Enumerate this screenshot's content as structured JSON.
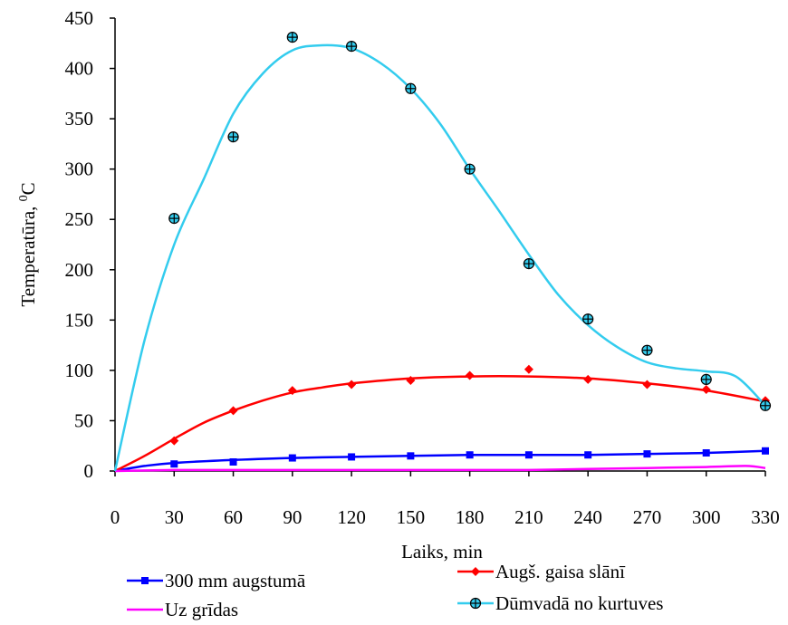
{
  "chart_data": {
    "type": "line",
    "title": "",
    "xlabel": "Laiks, min",
    "ylabel": "Temperatūra, ",
    "ylabel_sup": "0",
    "ylabel_unit": "C",
    "xlim": [
      0,
      330
    ],
    "ylim": [
      0,
      450
    ],
    "x_ticks": [
      0,
      30,
      60,
      90,
      120,
      150,
      180,
      210,
      240,
      270,
      300,
      330
    ],
    "y_ticks": [
      0,
      50,
      100,
      150,
      200,
      250,
      300,
      350,
      400,
      450
    ],
    "grid": false,
    "legend_position": "bottom",
    "series": [
      {
        "name": "300 mm augstumā",
        "color": "#0000ff",
        "marker": "square",
        "x": [
          0,
          30,
          60,
          90,
          120,
          150,
          180,
          210,
          240,
          270,
          300,
          330
        ],
        "values": [
          0,
          7,
          9,
          13,
          14,
          15,
          16,
          16,
          16,
          17,
          18,
          20
        ],
        "trend": [
          [
            0,
            0
          ],
          [
            15,
            5
          ],
          [
            30,
            8
          ],
          [
            60,
            11
          ],
          [
            90,
            13
          ],
          [
            120,
            14
          ],
          [
            150,
            15
          ],
          [
            180,
            16
          ],
          [
            210,
            16
          ],
          [
            240,
            16
          ],
          [
            270,
            17
          ],
          [
            300,
            18
          ],
          [
            330,
            20
          ]
        ]
      },
      {
        "name": "Augš. gaisa slānī",
        "color": "#ff0000",
        "marker": "diamond",
        "x": [
          0,
          30,
          60,
          90,
          120,
          150,
          180,
          210,
          240,
          270,
          300,
          330
        ],
        "values": [
          0,
          30,
          60,
          80,
          86,
          90,
          95,
          101,
          91,
          86,
          81,
          70
        ],
        "trend": [
          [
            0,
            0
          ],
          [
            15,
            15
          ],
          [
            30,
            32
          ],
          [
            45,
            48
          ],
          [
            60,
            60
          ],
          [
            75,
            70
          ],
          [
            90,
            78
          ],
          [
            105,
            83
          ],
          [
            120,
            87
          ],
          [
            150,
            92
          ],
          [
            180,
            94
          ],
          [
            210,
            94
          ],
          [
            240,
            92
          ],
          [
            270,
            87
          ],
          [
            300,
            80
          ],
          [
            330,
            69
          ]
        ]
      },
      {
        "name": "Uz grīdas",
        "color": "#ff00ff",
        "marker": "none",
        "x": [
          0,
          30,
          60,
          90,
          120,
          150,
          180,
          210,
          240,
          270,
          300,
          330
        ],
        "values": [
          0,
          1,
          1,
          1,
          1,
          1,
          1,
          1,
          2,
          3,
          4,
          3
        ],
        "trend": [
          [
            0,
            0
          ],
          [
            30,
            1
          ],
          [
            60,
            1
          ],
          [
            90,
            1
          ],
          [
            120,
            1
          ],
          [
            150,
            1
          ],
          [
            180,
            1
          ],
          [
            210,
            1
          ],
          [
            240,
            2
          ],
          [
            270,
            3
          ],
          [
            300,
            4
          ],
          [
            320,
            5
          ],
          [
            330,
            3
          ]
        ]
      },
      {
        "name": "Dūmvadā no kurtuves",
        "color": "#33ccee",
        "marker": "circle-plus",
        "x": [
          0,
          30,
          60,
          90,
          120,
          150,
          180,
          210,
          240,
          270,
          300,
          330
        ],
        "values": [
          0,
          251,
          332,
          431,
          422,
          380,
          300,
          206,
          151,
          120,
          91,
          65
        ],
        "trend": [
          [
            0,
            0
          ],
          [
            15,
            130
          ],
          [
            30,
            225
          ],
          [
            45,
            290
          ],
          [
            60,
            355
          ],
          [
            75,
            395
          ],
          [
            90,
            418
          ],
          [
            105,
            423
          ],
          [
            120,
            420
          ],
          [
            135,
            405
          ],
          [
            150,
            380
          ],
          [
            165,
            345
          ],
          [
            180,
            300
          ],
          [
            195,
            258
          ],
          [
            210,
            215
          ],
          [
            225,
            175
          ],
          [
            240,
            145
          ],
          [
            255,
            123
          ],
          [
            270,
            108
          ],
          [
            285,
            102
          ],
          [
            300,
            99
          ],
          [
            315,
            94
          ],
          [
            330,
            65
          ]
        ]
      }
    ]
  }
}
